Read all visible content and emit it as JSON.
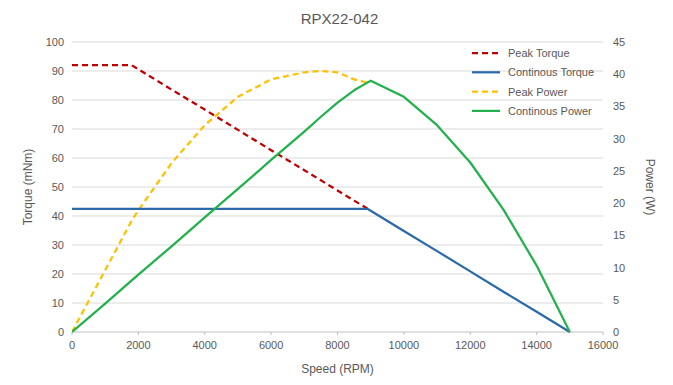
{
  "chart_data": {
    "type": "line",
    "title": "RPX22-042",
    "x_label": "Speed (RPM)",
    "y_label": "Torque (mNm)",
    "y2_label": "Power (W)",
    "x": [
      0,
      1000,
      1800,
      2000,
      3000,
      4000,
      5000,
      6000,
      7000,
      7500,
      8000,
      8500,
      8900,
      9000,
      10000,
      11000,
      12000,
      13000,
      14000,
      15000
    ],
    "series": [
      {
        "name": "Peak Torque",
        "color": "#c00000",
        "line_style": "dashed",
        "values": [
          92,
          92,
          92,
          90.6,
          83.6,
          76.7,
          69.7,
          62.7,
          55.8,
          52.3,
          48.8,
          45.3,
          42.6,
          null,
          null,
          null,
          null,
          null,
          null,
          null
        ]
      },
      {
        "name": "Continous Torque",
        "color": "#2a6aa8",
        "line_style": "solid",
        "values": [
          42.5,
          42.5,
          42.5,
          42.5,
          42.5,
          42.5,
          42.5,
          42.5,
          42.5,
          42.5,
          42.5,
          42.5,
          42.5,
          41.8,
          34.8,
          27.9,
          20.9,
          13.9,
          7.0,
          0
        ]
      },
      {
        "name": "Peak Power",
        "color": "#ffc000",
        "line_style": "dashed",
        "axis": "y2",
        "values": [
          0,
          9.6,
          17.3,
          18.9,
          26.2,
          32.1,
          36.5,
          39.2,
          40.3,
          40.5,
          40.3,
          39.2,
          38.7,
          null,
          null,
          null,
          null,
          null,
          null,
          null
        ]
      },
      {
        "name": "Continous Power",
        "color": "#22b14c",
        "line_style": "solid",
        "axis": "y2",
        "values": [
          0,
          4.4,
          8.0,
          8.9,
          13.3,
          17.8,
          22.2,
          26.7,
          31.1,
          33.4,
          35.6,
          37.5,
          38.7,
          39.0,
          36.5,
          32.1,
          26.3,
          19.0,
          10.3,
          0
        ]
      }
    ],
    "xlim": [
      0,
      16000
    ],
    "xticks": [
      0,
      2000,
      4000,
      6000,
      8000,
      10000,
      12000,
      14000,
      16000
    ],
    "ylim": [
      0,
      100
    ],
    "yticks": [
      0,
      10,
      20,
      30,
      40,
      50,
      60,
      70,
      80,
      90,
      100
    ],
    "y2lim": [
      0,
      45
    ],
    "y2ticks": [
      0,
      5,
      10,
      15,
      20,
      25,
      30,
      35,
      40,
      45
    ],
    "grid": true,
    "legend": "upper right"
  }
}
